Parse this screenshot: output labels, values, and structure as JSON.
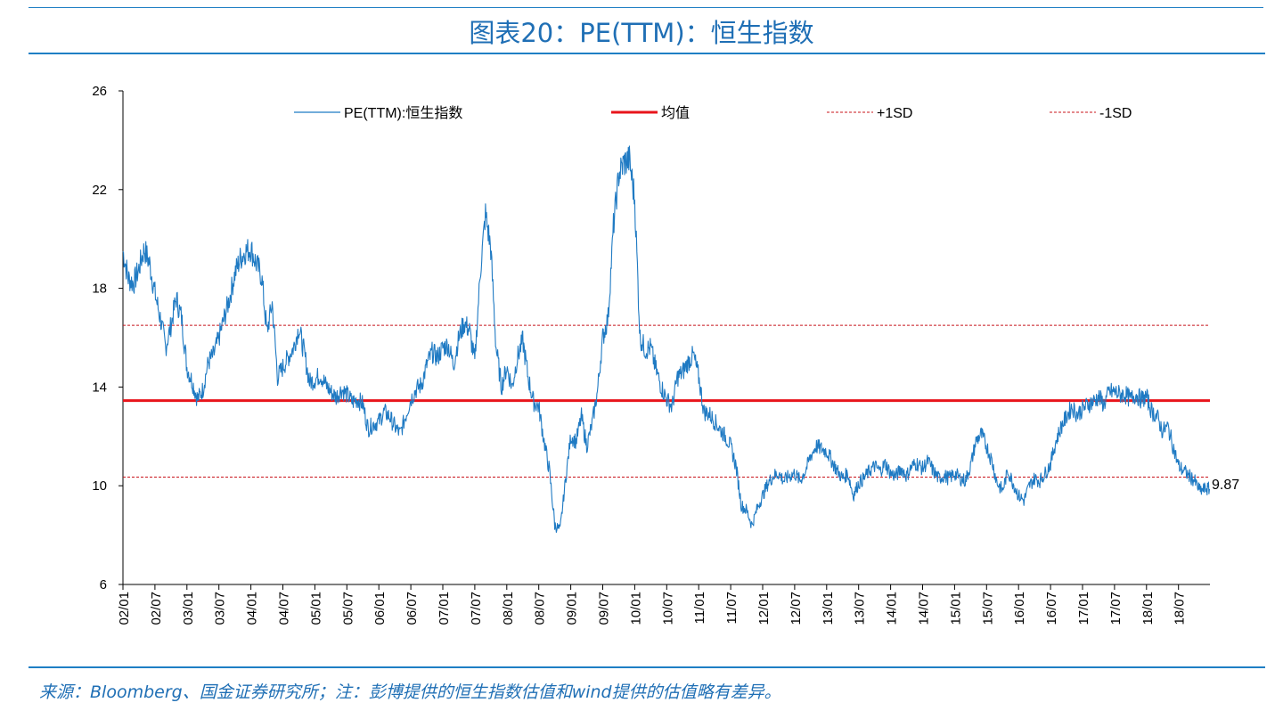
{
  "title": "图表20：PE(TTM)：恒生指数",
  "footnote": "来源：Bloomberg、国金证券研究所；注：彭博提供的恒生指数估值和wind提供的估值略有差异。",
  "colors": {
    "accent": "#1f6fb5",
    "series": "#1f7ac3",
    "mean": "#e8141b",
    "sd": "#c8141b"
  },
  "chart_data": {
    "type": "line",
    "ylim": [
      6,
      26
    ],
    "yticks": [
      6,
      10,
      14,
      18,
      22,
      26
    ],
    "xlim": [
      "2002-01",
      "2018-12"
    ],
    "xticks": [
      "02/01",
      "02/07",
      "03/01",
      "03/07",
      "04/01",
      "04/07",
      "05/01",
      "05/07",
      "06/01",
      "06/07",
      "07/01",
      "07/07",
      "08/01",
      "08/07",
      "09/01",
      "09/07",
      "10/01",
      "10/07",
      "11/01",
      "11/07",
      "12/01",
      "12/07",
      "13/01",
      "13/07",
      "14/01",
      "14/07",
      "15/01",
      "15/07",
      "16/01",
      "16/07",
      "17/01",
      "17/07",
      "18/01",
      "18/07"
    ],
    "legend": [
      {
        "name": "PE(TTM):恒生指数",
        "style": "line"
      },
      {
        "name": "均值",
        "style": "thick"
      },
      {
        "name": "+1SD",
        "style": "dashed"
      },
      {
        "name": "-1SD",
        "style": "dashed"
      }
    ],
    "legend_position": "top",
    "mean": 13.45,
    "plus_1sd": 16.5,
    "minus_1sd": 10.35,
    "last_value_label": "9.87",
    "series": [
      {
        "name": "PE(TTM):恒生指数",
        "x": [
          "2002-01",
          "2002-02",
          "2002-03",
          "2002-04",
          "2002-05",
          "2002-06",
          "2002-07",
          "2002-08",
          "2002-09",
          "2002-10",
          "2002-11",
          "2002-12",
          "2003-01",
          "2003-02",
          "2003-03",
          "2003-04",
          "2003-05",
          "2003-06",
          "2003-07",
          "2003-08",
          "2003-09",
          "2003-10",
          "2003-11",
          "2003-12",
          "2004-01",
          "2004-02",
          "2004-03",
          "2004-04",
          "2004-05",
          "2004-06",
          "2004-07",
          "2004-08",
          "2004-09",
          "2004-10",
          "2004-11",
          "2004-12",
          "2005-01",
          "2005-02",
          "2005-03",
          "2005-04",
          "2005-05",
          "2005-06",
          "2005-07",
          "2005-08",
          "2005-09",
          "2005-10",
          "2005-11",
          "2005-12",
          "2006-01",
          "2006-02",
          "2006-03",
          "2006-04",
          "2006-05",
          "2006-06",
          "2006-07",
          "2006-08",
          "2006-09",
          "2006-10",
          "2006-11",
          "2006-12",
          "2007-01",
          "2007-02",
          "2007-03",
          "2007-04",
          "2007-05",
          "2007-06",
          "2007-07",
          "2007-08",
          "2007-09",
          "2007-10",
          "2007-11",
          "2007-12",
          "2008-01",
          "2008-02",
          "2008-03",
          "2008-04",
          "2008-05",
          "2008-06",
          "2008-07",
          "2008-08",
          "2008-09",
          "2008-10",
          "2008-11",
          "2008-12",
          "2009-01",
          "2009-02",
          "2009-03",
          "2009-04",
          "2009-05",
          "2009-06",
          "2009-07",
          "2009-08",
          "2009-09",
          "2009-10",
          "2009-11",
          "2009-12",
          "2010-01",
          "2010-02",
          "2010-03",
          "2010-04",
          "2010-05",
          "2010-06",
          "2010-07",
          "2010-08",
          "2010-09",
          "2010-10",
          "2010-11",
          "2010-12",
          "2011-01",
          "2011-02",
          "2011-03",
          "2011-04",
          "2011-05",
          "2011-06",
          "2011-07",
          "2011-08",
          "2011-09",
          "2011-10",
          "2011-11",
          "2011-12",
          "2012-01",
          "2012-02",
          "2012-03",
          "2012-04",
          "2012-05",
          "2012-06",
          "2012-07",
          "2012-08",
          "2012-09",
          "2012-10",
          "2012-11",
          "2012-12",
          "2013-01",
          "2013-02",
          "2013-03",
          "2013-04",
          "2013-05",
          "2013-06",
          "2013-07",
          "2013-08",
          "2013-09",
          "2013-10",
          "2013-11",
          "2013-12",
          "2014-01",
          "2014-02",
          "2014-03",
          "2014-04",
          "2014-05",
          "2014-06",
          "2014-07",
          "2014-08",
          "2014-09",
          "2014-10",
          "2014-11",
          "2014-12",
          "2015-01",
          "2015-02",
          "2015-03",
          "2015-04",
          "2015-05",
          "2015-06",
          "2015-07",
          "2015-08",
          "2015-09",
          "2015-10",
          "2015-11",
          "2015-12",
          "2016-01",
          "2016-02",
          "2016-03",
          "2016-04",
          "2016-05",
          "2016-06",
          "2016-07",
          "2016-08",
          "2016-09",
          "2016-10",
          "2016-11",
          "2016-12",
          "2017-01",
          "2017-02",
          "2017-03",
          "2017-04",
          "2017-05",
          "2017-06",
          "2017-07",
          "2017-08",
          "2017-09",
          "2017-10",
          "2017-11",
          "2017-12",
          "2018-01",
          "2018-02",
          "2018-03",
          "2018-04",
          "2018-05",
          "2018-06",
          "2018-07",
          "2018-08",
          "2018-09",
          "2018-10",
          "2018-11",
          "2018-12"
        ],
        "values": [
          19.5,
          18.4,
          18.2,
          18.8,
          19.6,
          19.0,
          17.8,
          16.8,
          15.6,
          16.5,
          17.6,
          16.8,
          14.8,
          14.2,
          13.5,
          13.9,
          15.0,
          15.3,
          16.0,
          16.8,
          17.6,
          18.6,
          19.2,
          19.5,
          19.6,
          19.0,
          18.5,
          16.2,
          17.4,
          14.4,
          14.8,
          15.2,
          15.6,
          16.4,
          15.4,
          14.2,
          14.3,
          14.5,
          14.1,
          13.8,
          13.6,
          13.9,
          13.7,
          13.4,
          13.5,
          13.3,
          12.3,
          12.5,
          12.6,
          13.0,
          12.8,
          12.4,
          12.1,
          12.8,
          13.5,
          13.9,
          14.1,
          14.9,
          15.4,
          15.2,
          15.6,
          15.7,
          14.9,
          16.0,
          16.6,
          16.3,
          15.0,
          18.6,
          21.0,
          19.6,
          15.6,
          14.0,
          14.8,
          14.0,
          15.2,
          15.9,
          14.4,
          13.4,
          13.2,
          11.8,
          10.6,
          8.4,
          8.2,
          10.2,
          12.0,
          11.8,
          12.8,
          11.6,
          12.5,
          13.8,
          16.0,
          16.8,
          20.5,
          22.6,
          23.1,
          23.2,
          21.6,
          16.0,
          15.5,
          15.6,
          14.7,
          14.0,
          13.5,
          13.2,
          14.4,
          14.6,
          15.0,
          15.3,
          14.4,
          13.0,
          12.9,
          12.6,
          12.3,
          12.0,
          11.6,
          10.8,
          9.2,
          9.0,
          8.4,
          9.1,
          9.6,
          10.1,
          10.4,
          10.5,
          10.2,
          10.4,
          10.5,
          10.2,
          10.6,
          11.2,
          11.6,
          11.5,
          11.4,
          11.0,
          10.6,
          10.3,
          10.5,
          9.6,
          10.1,
          10.3,
          10.6,
          10.8,
          10.6,
          10.9,
          10.5,
          10.4,
          10.7,
          10.4,
          10.8,
          10.9,
          10.7,
          11.0,
          10.6,
          10.3,
          10.4,
          10.3,
          10.5,
          10.3,
          10.2,
          10.8,
          11.8,
          12.1,
          11.6,
          11.0,
          10.1,
          9.8,
          10.6,
          10.1,
          9.6,
          9.4,
          10.0,
          10.3,
          10.2,
          10.5,
          10.9,
          11.8,
          12.4,
          12.8,
          13.2,
          12.9,
          13.1,
          13.3,
          13.4,
          13.6,
          13.3,
          13.8,
          13.8,
          13.7,
          13.7,
          13.5,
          13.7,
          13.5,
          13.6,
          13.0,
          12.8,
          12.2,
          12.4,
          11.6,
          10.8,
          10.6,
          10.4,
          10.2,
          9.8,
          9.87
        ]
      }
    ]
  }
}
